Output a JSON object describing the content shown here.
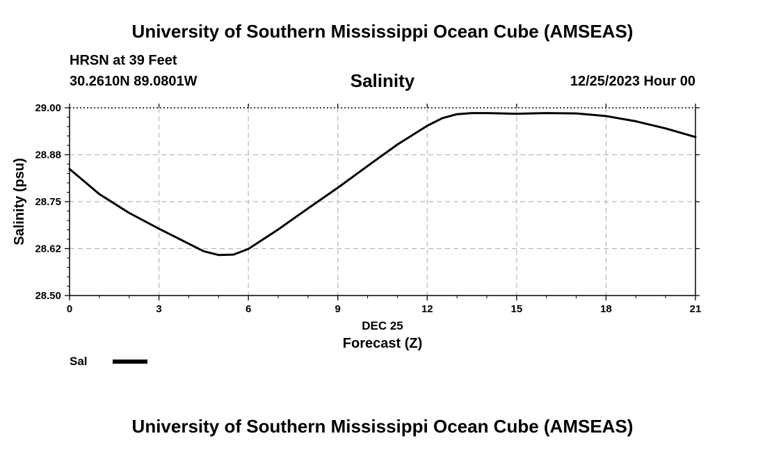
{
  "header": {
    "title_top": "University of Southern Mississippi Ocean Cube (AMSEAS)",
    "station_name": "HRSN at 39 Feet",
    "station_coords": "30.2610N  89.0801W",
    "chart_title": "Salinity",
    "forecast_time": "12/25/2023 Hour 00"
  },
  "footer": {
    "title_bottom": "University of Southern Mississippi Ocean Cube (AMSEAS)"
  },
  "legend": {
    "label": "Sal"
  },
  "chart_data": {
    "type": "line",
    "title": "Salinity",
    "xlabel": "Forecast (Z)",
    "xlabel_date": "DEC 25",
    "ylabel": "Salinity (psu)",
    "xlim": [
      0,
      21
    ],
    "ylim": [
      28.5,
      29.0
    ],
    "x_ticks": [
      0,
      3,
      6,
      9,
      12,
      15,
      18,
      21
    ],
    "x_tick_labels": [
      "0",
      "3",
      "6",
      "9",
      "12",
      "15",
      "18",
      "21"
    ],
    "y_ticks": [
      28.5,
      28.625,
      28.75,
      28.875,
      29.0
    ],
    "y_tick_labels": [
      "28.50",
      "28.62",
      "28.75",
      "28.88",
      "29.00"
    ],
    "grid": true,
    "legend_position": "bottom-left",
    "series": [
      {
        "name": "Sal",
        "color": "#000000",
        "x": [
          0,
          1,
          2,
          3,
          4,
          4.5,
          5,
          5.5,
          6,
          7,
          8,
          9,
          10,
          11,
          12,
          12.5,
          13,
          13.5,
          14,
          15,
          16,
          17,
          18,
          19,
          20,
          21
        ],
        "values": [
          28.837,
          28.77,
          28.72,
          28.678,
          28.638,
          28.618,
          28.608,
          28.609,
          28.624,
          28.676,
          28.732,
          28.787,
          28.845,
          28.902,
          28.952,
          28.972,
          28.983,
          28.986,
          28.986,
          28.984,
          28.986,
          28.985,
          28.978,
          28.964,
          28.945,
          28.922
        ]
      }
    ]
  }
}
